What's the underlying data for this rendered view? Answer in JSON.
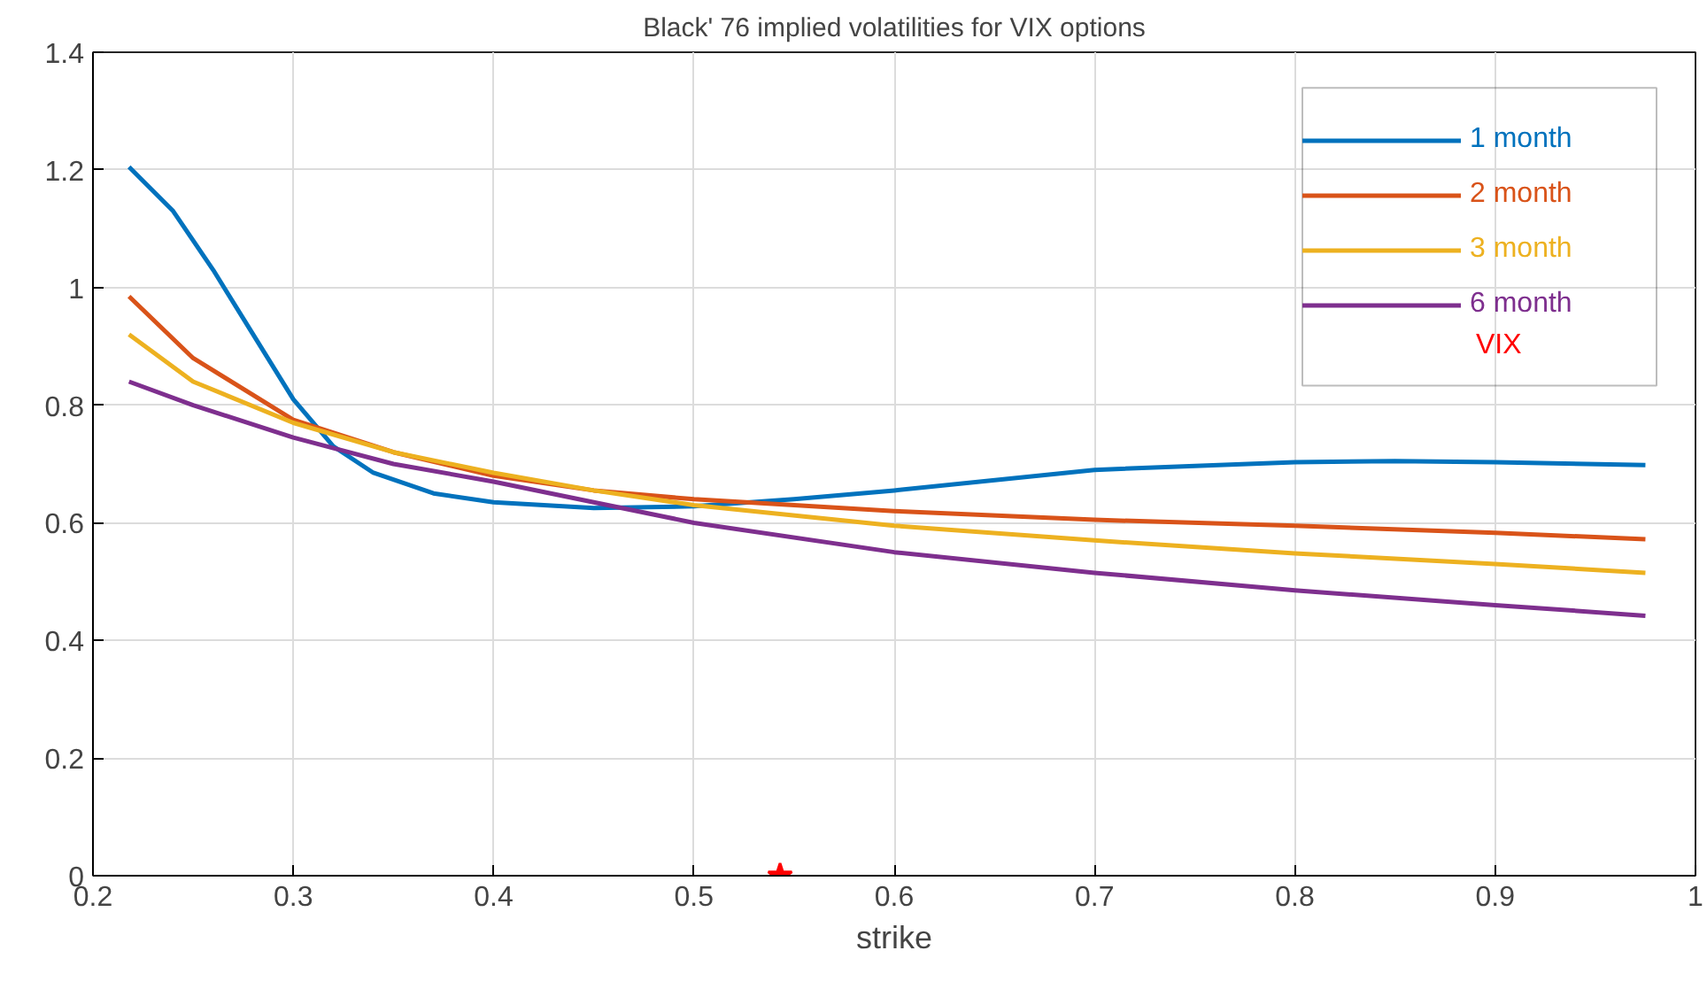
{
  "chart_data": {
    "type": "line",
    "title": "Black' 76 implied volatilities for VIX options",
    "xlabel": "strike",
    "xlim": [
      0.2,
      1
    ],
    "ylim": [
      0,
      1.4
    ],
    "xticks": [
      0.2,
      0.3,
      0.4,
      0.5,
      0.6,
      0.7,
      0.8,
      0.9,
      1
    ],
    "yticks": [
      0,
      0.2,
      0.4,
      0.6,
      0.8,
      1,
      1.2,
      1.4
    ],
    "grid": true,
    "legend": "top right",
    "line_style": "solid",
    "series": [
      {
        "name": "1 month",
        "color": "#0072bd",
        "x": [
          0.218,
          0.24,
          0.26,
          0.28,
          0.3,
          0.32,
          0.34,
          0.37,
          0.4,
          0.45,
          0.5,
          0.55,
          0.6,
          0.7,
          0.8,
          0.85,
          0.9,
          0.975
        ],
        "values": [
          1.205,
          1.13,
          1.03,
          0.92,
          0.81,
          0.73,
          0.685,
          0.65,
          0.635,
          0.625,
          0.628,
          0.64,
          0.655,
          0.69,
          0.703,
          0.705,
          0.703,
          0.698
        ]
      },
      {
        "name": "2 month",
        "color": "#d95319",
        "x": [
          0.218,
          0.25,
          0.3,
          0.35,
          0.4,
          0.45,
          0.5,
          0.6,
          0.7,
          0.8,
          0.9,
          0.975
        ],
        "values": [
          0.985,
          0.88,
          0.775,
          0.72,
          0.68,
          0.655,
          0.64,
          0.62,
          0.605,
          0.595,
          0.583,
          0.572
        ]
      },
      {
        "name": "3 month",
        "color": "#edb120",
        "x": [
          0.218,
          0.25,
          0.3,
          0.35,
          0.4,
          0.45,
          0.5,
          0.6,
          0.7,
          0.8,
          0.9,
          0.975
        ],
        "values": [
          0.92,
          0.84,
          0.77,
          0.72,
          0.685,
          0.655,
          0.63,
          0.595,
          0.57,
          0.548,
          0.53,
          0.515
        ]
      },
      {
        "name": "6 month",
        "color": "#7e2f8e",
        "x": [
          0.218,
          0.25,
          0.3,
          0.35,
          0.4,
          0.45,
          0.5,
          0.6,
          0.7,
          0.8,
          0.9,
          0.975
        ],
        "values": [
          0.84,
          0.8,
          0.745,
          0.7,
          0.67,
          0.635,
          0.6,
          0.55,
          0.515,
          0.485,
          0.46,
          0.442
        ]
      },
      {
        "name": "VIX",
        "type": "scatter",
        "marker": "star",
        "color": "#ff0000",
        "x": [
          0.543
        ],
        "values": [
          0
        ]
      }
    ]
  }
}
